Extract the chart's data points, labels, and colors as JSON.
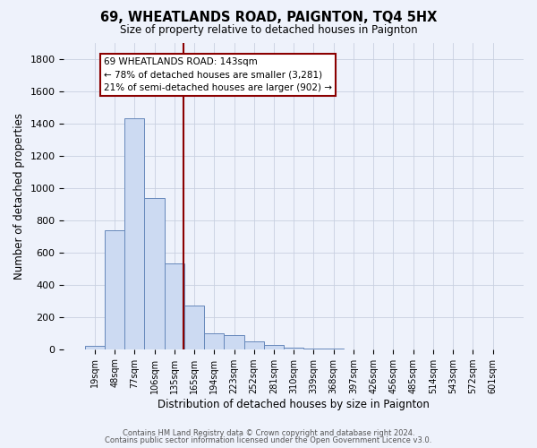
{
  "title": "69, WHEATLANDS ROAD, PAIGNTON, TQ4 5HX",
  "subtitle": "Size of property relative to detached houses in Paignton",
  "xlabel": "Distribution of detached houses by size in Paignton",
  "ylabel": "Number of detached properties",
  "bar_labels": [
    "19sqm",
    "48sqm",
    "77sqm",
    "106sqm",
    "135sqm",
    "165sqm",
    "194sqm",
    "223sqm",
    "252sqm",
    "281sqm",
    "310sqm",
    "339sqm",
    "368sqm",
    "397sqm",
    "426sqm",
    "456sqm",
    "485sqm",
    "514sqm",
    "543sqm",
    "572sqm",
    "601sqm"
  ],
  "bar_values": [
    20,
    735,
    1430,
    935,
    530,
    270,
    100,
    90,
    50,
    25,
    10,
    5,
    2,
    1,
    1,
    1,
    0,
    0,
    0,
    0,
    0
  ],
  "bar_color": "#ccdaf2",
  "bar_edge_color": "#6688bb",
  "vline_x": 4.48,
  "vline_color": "#8b0000",
  "annotation_text": "69 WHEATLANDS ROAD: 143sqm\n← 78% of detached houses are smaller (3,281)\n21% of semi-detached houses are larger (902) →",
  "annotation_box_edge": "#8b0000",
  "ylim": [
    0,
    1900
  ],
  "yticks": [
    0,
    200,
    400,
    600,
    800,
    1000,
    1200,
    1400,
    1600,
    1800
  ],
  "footer_line1": "Contains HM Land Registry data © Crown copyright and database right 2024.",
  "footer_line2": "Contains public sector information licensed under the Open Government Licence v3.0.",
  "bg_color": "#eef2fb",
  "plot_bg_color": "#eef2fb",
  "grid_color": "#c8d0e0"
}
